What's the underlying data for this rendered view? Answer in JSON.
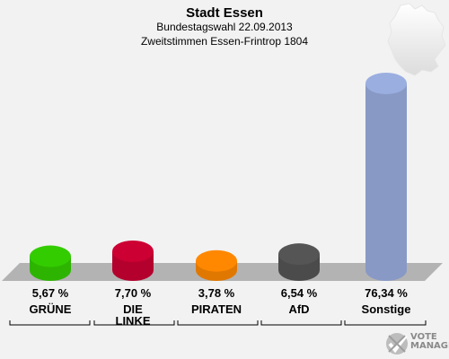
{
  "header": {
    "title": "Stadt Essen",
    "subtitle": "Bundestagswahl 22.09.2013",
    "district": "Zweitstimmen Essen-Frintrop 1804"
  },
  "chart_data": {
    "type": "bar",
    "categories": [
      "GRÜNE",
      "DIE LINKE",
      "PIRATEN",
      "AfD",
      "Sonstige"
    ],
    "category_lines": [
      [
        "GRÜNE"
      ],
      [
        "DIE",
        "LINKE"
      ],
      [
        "PIRATEN"
      ],
      [
        "AfD"
      ],
      [
        "Sonstige"
      ]
    ],
    "values": [
      5.67,
      7.7,
      3.78,
      6.54,
      76.34
    ],
    "value_labels": [
      "5,67 %",
      "7,70 %",
      "3,78 %",
      "6,54 %",
      "76,34 %"
    ],
    "colors": [
      "#33cc00",
      "#cc0033",
      "#ff8800",
      "#555555",
      "#9aaee0"
    ],
    "unit": "%",
    "ylim": [
      0,
      80
    ],
    "grid": false,
    "legend": "none"
  },
  "branding": {
    "map_icon": "germany-map-icon",
    "logo_icon": "votemanager-check-icon",
    "logo_text_1": "VOTE",
    "logo_text_2": "MANAGER"
  }
}
